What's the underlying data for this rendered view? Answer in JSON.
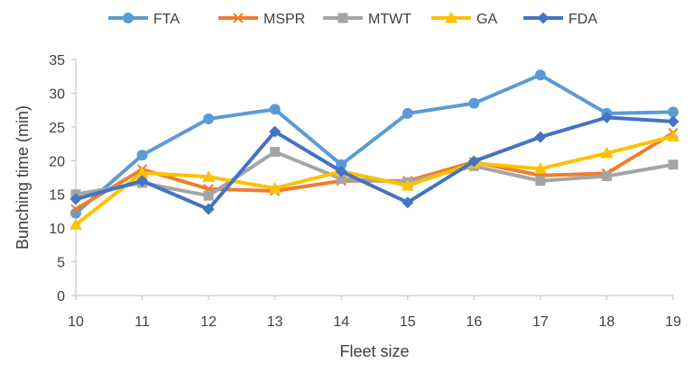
{
  "chart_data": {
    "type": "line",
    "title": "",
    "xlabel": "Fleet size",
    "ylabel": "Bunching time (min)",
    "categories": [
      "10",
      "11",
      "12",
      "13",
      "14",
      "15",
      "16",
      "17",
      "18",
      "19"
    ],
    "ylim": [
      0,
      35
    ],
    "yticks": [
      "0",
      "5",
      "10",
      "15",
      "20",
      "25",
      "30",
      "35"
    ],
    "grid": false,
    "legend_position": "top",
    "series": [
      {
        "name": "FTA",
        "marker": "circle",
        "color": "#5B9BD5",
        "values": [
          12.2,
          20.8,
          26.2,
          27.6,
          19.4,
          27.0,
          28.5,
          32.7,
          27.0,
          27.2
        ]
      },
      {
        "name": "MSPR",
        "marker": "cross",
        "color": "#ED7D31",
        "values": [
          12.8,
          18.7,
          15.8,
          15.5,
          17.0,
          17.0,
          19.8,
          17.8,
          18.1,
          24.1
        ]
      },
      {
        "name": "MTWT",
        "marker": "square",
        "color": "#A5A5A5",
        "values": [
          15.0,
          16.7,
          14.8,
          21.3,
          17.3,
          16.8,
          19.2,
          17.0,
          17.7,
          19.4
        ]
      },
      {
        "name": "GA",
        "marker": "triangle",
        "color": "#FFC000",
        "values": [
          10.5,
          18.2,
          17.6,
          15.9,
          18.4,
          16.3,
          19.6,
          18.8,
          21.1,
          23.6
        ]
      },
      {
        "name": "FDA",
        "marker": "diamond",
        "color": "#4472C4",
        "values": [
          14.3,
          17.0,
          12.8,
          24.3,
          18.4,
          13.8,
          19.9,
          23.5,
          26.4,
          25.8
        ]
      }
    ]
  }
}
